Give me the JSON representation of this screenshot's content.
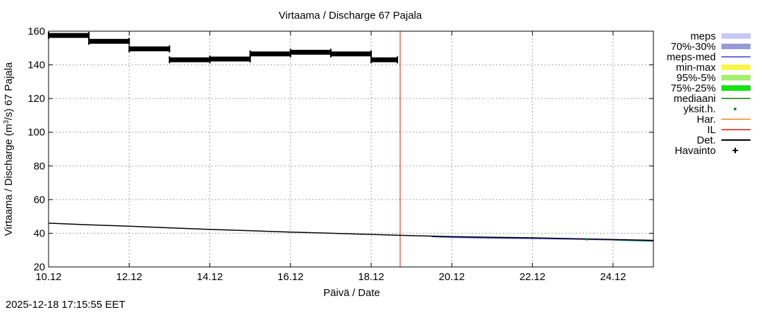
{
  "chart_data": {
    "type": "line",
    "title": "Virtaama / Discharge  67 Pajala",
    "xlabel": "Päivä / Date",
    "ylabel_prefix": "Virtaama / Discharge (m",
    "ylabel_sup": "3",
    "ylabel_suffix": "/s)  67 Pajala",
    "xlim": [
      0,
      15
    ],
    "ylim": [
      20,
      160
    ],
    "x_ticks": [
      0,
      2,
      4,
      6,
      8,
      10,
      12,
      14
    ],
    "x_tick_labels": [
      "10.12",
      "12.12",
      "14.12",
      "16.12",
      "18.12",
      "20.12",
      "22.12",
      "24.12"
    ],
    "y_ticks": [
      20,
      40,
      60,
      80,
      100,
      120,
      140,
      160
    ],
    "y_tick_labels": [
      "20",
      "40",
      "60",
      "80",
      "100",
      "120",
      "140",
      "160"
    ],
    "grid": true,
    "now_x": 8.72,
    "colors": {
      "meps": "#c6c8f6",
      "p70_30": "#9a9ad6",
      "meps_med": "#3a3ad0",
      "min_max": "#f7f74a",
      "p95_5": "#a6ef6c",
      "p75_25": "#16e216",
      "mediaani": "#0a7d0a",
      "yksit": "#0a7d0a",
      "har": "#f08a1a",
      "il": "#e01010",
      "det": "#000000",
      "havainto": "#000000"
    },
    "series": [
      {
        "name": "Havainto",
        "segments": [
          {
            "x0": 0.0,
            "x1": 1.0,
            "y": 157.5
          },
          {
            "x0": 1.0,
            "x1": 2.0,
            "y": 154.0
          },
          {
            "x0": 2.0,
            "x1": 3.0,
            "y": 149.5
          },
          {
            "x0": 3.0,
            "x1": 4.0,
            "y": 143.0
          },
          {
            "x0": 4.0,
            "x1": 5.0,
            "y": 143.5
          },
          {
            "x0": 5.0,
            "x1": 6.0,
            "y": 146.5
          },
          {
            "x0": 6.0,
            "x1": 7.0,
            "y": 147.5
          },
          {
            "x0": 7.0,
            "x1": 8.0,
            "y": 146.5
          },
          {
            "x0": 8.0,
            "x1": 8.65,
            "y": 143.0
          }
        ]
      },
      {
        "name": "Det.",
        "x": [
          0,
          1,
          2,
          3,
          4,
          5,
          6,
          7,
          8,
          9,
          10,
          11,
          12,
          13,
          14,
          15
        ],
        "y": [
          46.0,
          45.0,
          44.2,
          43.2,
          42.3,
          41.5,
          40.7,
          40.0,
          39.3,
          38.6,
          38.0,
          37.6,
          37.3,
          36.8,
          36.3,
          35.8
        ]
      }
    ],
    "meps_band": {
      "x": [
        9.5,
        10,
        11,
        12,
        13,
        14,
        15
      ],
      "lo": [
        37.8,
        37.0,
        36.5,
        36.4,
        36.0,
        35.6,
        35.0
      ],
      "hi": [
        38.4,
        38.3,
        38.0,
        37.6,
        37.1,
        36.6,
        36.0
      ]
    },
    "meps_med": {
      "x": [
        9.5,
        10,
        11,
        12,
        13,
        14,
        15
      ],
      "y": [
        38.0,
        37.7,
        37.3,
        37.0,
        36.6,
        36.1,
        35.5
      ]
    },
    "yksit_points": [
      {
        "x": 13.35,
        "y": 36.4
      }
    ],
    "legend": [
      {
        "label": "meps",
        "style": "band",
        "color_key": "meps"
      },
      {
        "label": "70%-30%",
        "style": "band",
        "color_key": "p70_30"
      },
      {
        "label": "meps-med",
        "style": "line",
        "color_key": "meps_med"
      },
      {
        "label": "min-max",
        "style": "band",
        "color_key": "min_max"
      },
      {
        "label": "95%-5%",
        "style": "band",
        "color_key": "p95_5"
      },
      {
        "label": "75%-25%",
        "style": "band",
        "color_key": "p75_25"
      },
      {
        "label": "mediaani",
        "style": "line",
        "color_key": "mediaani"
      },
      {
        "label": "yksit.h.",
        "style": "dot",
        "color_key": "yksit"
      },
      {
        "label": "Har.",
        "style": "line",
        "color_key": "har"
      },
      {
        "label": "IL",
        "style": "line",
        "color_key": "il"
      },
      {
        "label": "Det.",
        "style": "line",
        "color_key": "det"
      },
      {
        "label": "Havainto",
        "style": "plus",
        "color_key": "havainto"
      }
    ]
  },
  "footer": {
    "timestamp": "2025-12-18 17:15:55 EET"
  }
}
